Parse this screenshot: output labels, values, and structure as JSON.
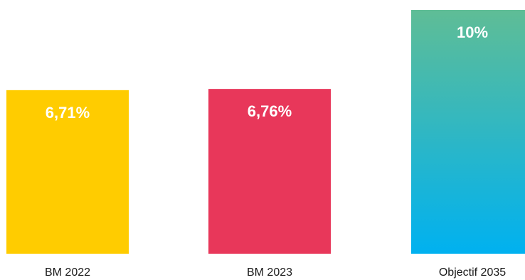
{
  "chart_data": {
    "type": "bar",
    "categories": [
      "BM 2022",
      "BM 2023",
      "Objectif 2035"
    ],
    "values": [
      6.71,
      6.76,
      10
    ],
    "value_labels": [
      "6,71%",
      "6,76%",
      "10%"
    ],
    "unit": "%",
    "ylim": [
      0,
      10
    ],
    "grid": false,
    "axes_visible": false,
    "bar_colors": [
      {
        "top": "#FFCC00",
        "bottom": "#FFCC00"
      },
      {
        "top": "#E8375A",
        "bottom": "#E8375A"
      },
      {
        "top": "#5FBD96",
        "bottom": "#00B1F0"
      }
    ]
  }
}
